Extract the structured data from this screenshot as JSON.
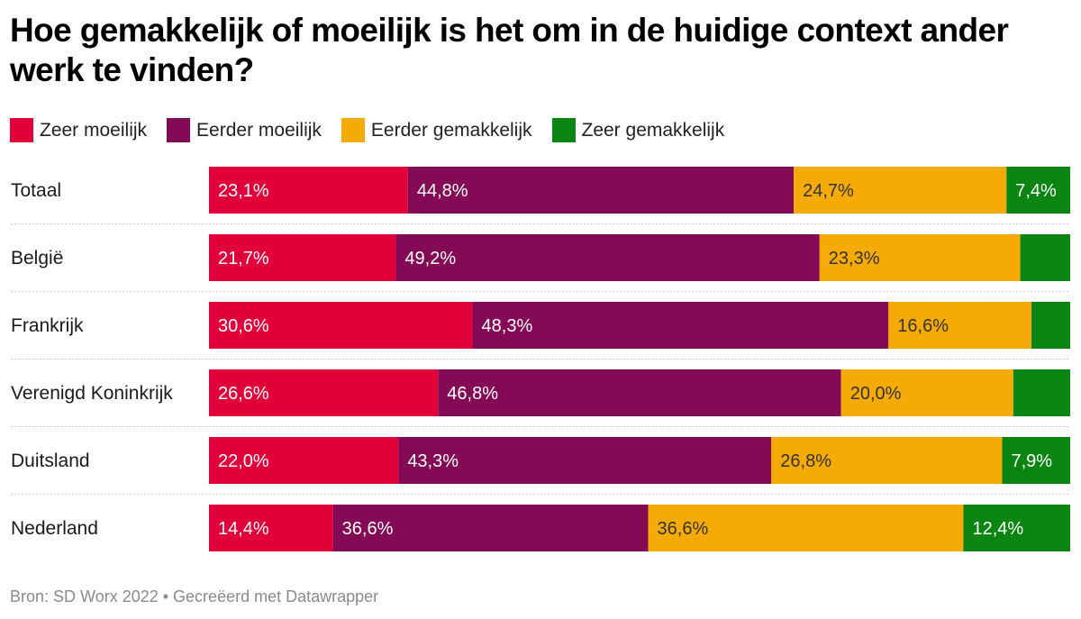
{
  "title": "Hoe gemakkelijk of moeilijk is het om in de huidige context ander werk te vinden?",
  "footer": "Bron: SD Worx 2022 • Gecreëerd met Datawrapper",
  "chart_data": {
    "type": "bar",
    "orientation": "horizontal",
    "stacked": true,
    "normalized_to": 100,
    "title": "Hoe gemakkelijk of moeilijk is het om in de huidige context ander werk te vinden?",
    "xlabel": "",
    "ylabel": "",
    "legend_position": "top-left",
    "grid": false,
    "value_suffix": "%",
    "decimal_separator": ",",
    "categories": [
      "Totaal",
      "België",
      "Frankrijk",
      "Verenigd Koninkrijk",
      "Duitsland",
      "Nederland"
    ],
    "series": [
      {
        "name": "Zeer moeilijk",
        "color": "#e2003a",
        "label_color": "#ffffff",
        "values": [
          23.1,
          21.7,
          30.6,
          26.6,
          22.0,
          14.4
        ],
        "labels": [
          "23,1%",
          "21,7%",
          "30,6%",
          "26,6%",
          "22,0%",
          "14,4%"
        ]
      },
      {
        "name": "Eerder moeilijk",
        "color": "#850a55",
        "label_color": "#ffffff",
        "values": [
          44.8,
          49.2,
          48.3,
          46.8,
          43.3,
          36.6
        ],
        "labels": [
          "44,8%",
          "49,2%",
          "48,3%",
          "46,8%",
          "43,3%",
          "36,6%"
        ]
      },
      {
        "name": "Eerder gemakkelijk",
        "color": "#f6aa05",
        "label_color": "#333333",
        "values": [
          24.7,
          23.3,
          16.6,
          20.0,
          26.8,
          36.6
        ],
        "labels": [
          "24,7%",
          "23,3%",
          "16,6%",
          "20,0%",
          "26,8%",
          "36,6%"
        ]
      },
      {
        "name": "Zeer gemakkelijk",
        "color": "#0a8512",
        "label_color": "#ffffff",
        "values": [
          7.4,
          5.8,
          4.5,
          6.6,
          7.9,
          12.4
        ],
        "labels": [
          "7,4%",
          "",
          "",
          "",
          "7,9%",
          "12,4%"
        ]
      }
    ]
  }
}
